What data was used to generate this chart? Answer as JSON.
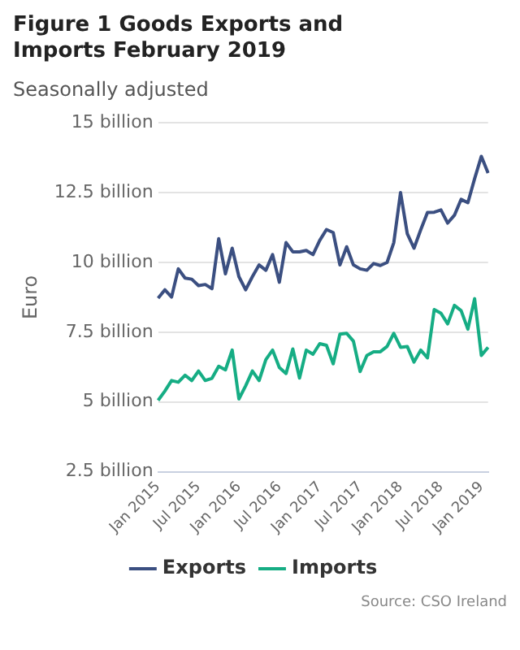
{
  "chart_data": {
    "type": "line",
    "title": "Figure 1 Goods Exports and Imports February 2019",
    "subtitle": "Seasonally adjusted",
    "ylabel": "Euro",
    "categories": [
      "Jan 2015",
      null,
      null,
      null,
      null,
      null,
      "Jul 2015",
      null,
      null,
      null,
      null,
      null,
      "Jan 2016",
      null,
      null,
      null,
      null,
      null,
      "Jul 2016",
      null,
      null,
      null,
      null,
      null,
      "Jan 2017",
      null,
      null,
      null,
      null,
      null,
      "Jul 2017",
      null,
      null,
      null,
      null,
      null,
      "Jan 2018",
      null,
      null,
      null,
      null,
      null,
      "Jul 2018",
      null,
      null,
      null,
      null,
      null,
      "Jan 2019",
      null
    ],
    "series": [
      {
        "name": "Exports",
        "color": "#3b4f81",
        "values": [
          8.72,
          9.02,
          8.76,
          9.77,
          9.44,
          9.4,
          9.17,
          9.21,
          9.06,
          10.85,
          9.59,
          10.51,
          9.49,
          9.02,
          9.49,
          9.91,
          9.72,
          10.28,
          9.29,
          10.71,
          10.38,
          10.38,
          10.43,
          10.28,
          10.79,
          11.18,
          11.07,
          9.91,
          10.56,
          9.91,
          9.77,
          9.72,
          9.96,
          9.89,
          10.0,
          10.71,
          12.5,
          11.03,
          10.51,
          11.17,
          11.79,
          11.8,
          11.88,
          11.41,
          11.69,
          12.26,
          12.14,
          13.0,
          13.8,
          13.2
        ]
      },
      {
        "name": "Imports",
        "color": "#16ad84",
        "values": [
          5.06,
          5.39,
          5.77,
          5.71,
          5.96,
          5.77,
          6.11,
          5.77,
          5.85,
          6.28,
          6.15,
          6.86,
          5.11,
          5.58,
          6.11,
          5.77,
          6.52,
          6.86,
          6.24,
          6.02,
          6.9,
          5.86,
          6.86,
          6.71,
          7.09,
          7.03,
          6.37,
          7.43,
          7.46,
          7.18,
          6.09,
          6.67,
          6.8,
          6.8,
          6.99,
          7.46,
          6.96,
          6.99,
          6.43,
          6.86,
          6.58,
          8.31,
          8.18,
          7.8,
          8.46,
          8.27,
          7.61,
          8.7,
          6.67,
          6.96
        ]
      }
    ],
    "ylim": [
      2.5,
      15
    ],
    "yticks": [
      {
        "value": 2.5,
        "label": "2.5 billion"
      },
      {
        "value": 5,
        "label": "5 billion"
      },
      {
        "value": 7.5,
        "label": "7.5 billion"
      },
      {
        "value": 10,
        "label": "10 billion"
      },
      {
        "value": 12.5,
        "label": "12.5 billion"
      },
      {
        "value": 15,
        "label": "15 billion"
      }
    ],
    "grid": "y",
    "legend": "bottom",
    "marker": "none",
    "line_style": "solid",
    "annotations": [
      "Source: CSO Ireland"
    ]
  }
}
